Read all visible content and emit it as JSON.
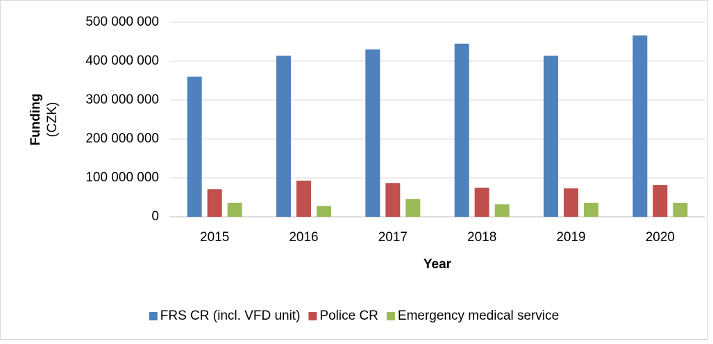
{
  "chart_data": {
    "type": "bar",
    "ylabel": "Funding",
    "ylabel_unit": "(CZK)",
    "xlabel": "Year",
    "categories": [
      "2015",
      "2016",
      "2017",
      "2018",
      "2019",
      "2020"
    ],
    "series": [
      {
        "name": "FRS CR (incl. VFD unit)",
        "color": "#4f81bd",
        "values": [
          360000000,
          414000000,
          430000000,
          445000000,
          414000000,
          466000000
        ]
      },
      {
        "name": "Police CR",
        "color": "#c0504d",
        "values": [
          71000000,
          93000000,
          87000000,
          75000000,
          73000000,
          82000000
        ]
      },
      {
        "name": "Emergency medical service",
        "color": "#9bbb59",
        "values": [
          36000000,
          28000000,
          46000000,
          32000000,
          36000000,
          36000000
        ]
      }
    ],
    "ylim": [
      0,
      500000000
    ],
    "yticks": [
      0,
      {
        "value": 100000000,
        "label": "100 000 000"
      },
      {
        "value": 200000000,
        "label": "200 000 000"
      },
      {
        "value": 300000000,
        "label": "300 000 000"
      },
      {
        "value": 400000000,
        "label": "400 000 000"
      },
      {
        "value": 500000000,
        "label": "500 000 000"
      }
    ],
    "grid": true,
    "legend": "bottom"
  }
}
